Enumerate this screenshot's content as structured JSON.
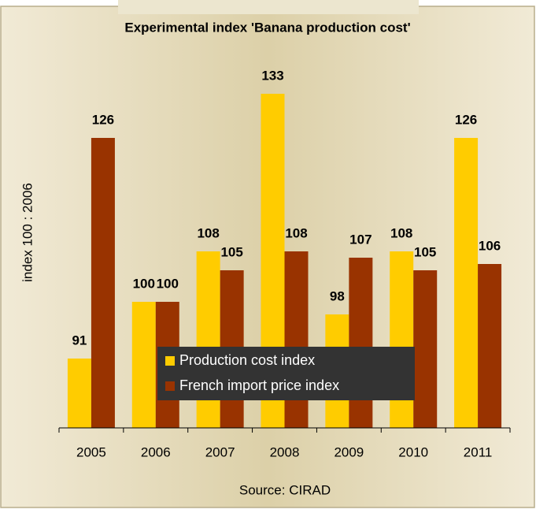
{
  "chart_data": {
    "type": "bar",
    "title": "Experimental index 'Banana production cost'",
    "y_label": "index 100 : 2006",
    "source": "Source: CIRAD",
    "categories": [
      "2005",
      "2006",
      "2007",
      "2008",
      "2009",
      "2010",
      "2011"
    ],
    "series": [
      {
        "name": "Production cost index",
        "color": "#ffcc00",
        "values": [
          91,
          100,
          108,
          133,
          98,
          108,
          126
        ]
      },
      {
        "name": "French import price index",
        "color": "#993300",
        "values": [
          126,
          100,
          105,
          108,
          107,
          105,
          106
        ]
      }
    ],
    "ylim": [
      80,
      140
    ],
    "legend": "center"
  }
}
